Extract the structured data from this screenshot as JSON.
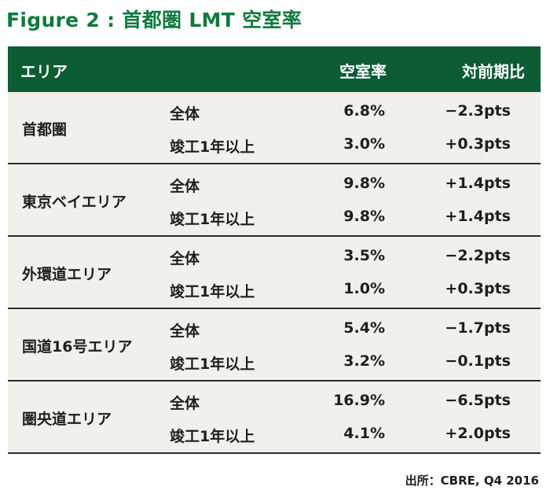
{
  "title": "Figure 2 : 首都圏 LMT 空室率",
  "table": {
    "headers": {
      "area": "エリア",
      "vacancy": "空室率",
      "yoy": "対前期比"
    },
    "groups": [
      {
        "area": "首都圏",
        "rows": [
          {
            "label": "全体",
            "vacancy": "6.8%",
            "yoy": "−2.3pts"
          },
          {
            "label": "竣工1年以上",
            "vacancy": "3.0%",
            "yoy": "+0.3pts"
          }
        ]
      },
      {
        "area": "東京ベイエリア",
        "rows": [
          {
            "label": "全体",
            "vacancy": "9.8%",
            "yoy": "+1.4pts"
          },
          {
            "label": "竣工1年以上",
            "vacancy": "9.8%",
            "yoy": "+1.4pts"
          }
        ]
      },
      {
        "area": "外環道エリア",
        "rows": [
          {
            "label": "全体",
            "vacancy": "3.5%",
            "yoy": "−2.2pts"
          },
          {
            "label": "竣工1年以上",
            "vacancy": "1.0%",
            "yoy": "+0.3pts"
          }
        ]
      },
      {
        "area": "国道16号エリア",
        "rows": [
          {
            "label": "全体",
            "vacancy": "5.4%",
            "yoy": "−1.7pts"
          },
          {
            "label": "竣工1年以上",
            "vacancy": "3.2%",
            "yoy": "−0.1pts"
          }
        ]
      },
      {
        "area": "圏央道エリア",
        "rows": [
          {
            "label": "全体",
            "vacancy": "16.9%",
            "yoy": "−6.5pts"
          },
          {
            "label": "竣工1年以上",
            "vacancy": "4.1%",
            "yoy": "+2.0pts"
          }
        ]
      }
    ]
  },
  "source": "出所：CBRE, Q4 2016",
  "colors": {
    "title_green": "#0f7a3f",
    "header_bg": "#0c5c34",
    "table_bg": "#f2f0ea"
  }
}
